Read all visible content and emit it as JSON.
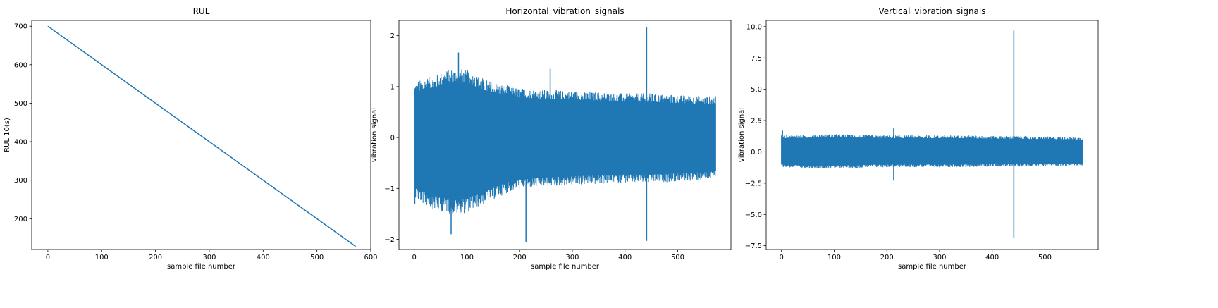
{
  "chart_data": [
    {
      "type": "line",
      "title": "RUL",
      "xlabel": "sample file number",
      "ylabel": "RUL 10(s)",
      "xlim": [
        -30,
        600
      ],
      "ylim": [
        120,
        715
      ],
      "xticks": [
        0,
        100,
        200,
        300,
        400,
        500,
        600
      ],
      "yticks": [
        200,
        300,
        400,
        500,
        600,
        700
      ],
      "grid": false,
      "color": "#1f77b4",
      "series": [
        {
          "x": [
            0,
            572
          ],
          "y": [
            700,
            128
          ]
        }
      ]
    },
    {
      "type": "line",
      "title": "Horizontal_vibration_signals",
      "xlabel": "sample file number",
      "ylabel": "vibration signal",
      "xlim": [
        -29,
        601
      ],
      "ylim": [
        -2.2,
        2.3
      ],
      "xticks": [
        0,
        100,
        200,
        300,
        400,
        500
      ],
      "yticks": [
        -2,
        -1,
        0,
        1,
        2
      ],
      "grid": false,
      "color": "#1f77b4",
      "envelope": {
        "x": [
          0,
          20,
          40,
          60,
          80,
          100,
          120,
          140,
          160,
          180,
          200,
          250,
          300,
          350,
          400,
          450,
          500,
          550,
          572
        ],
        "upper": [
          1.05,
          1.15,
          1.2,
          1.3,
          1.35,
          1.3,
          1.2,
          1.1,
          1.05,
          1.0,
          0.95,
          0.92,
          0.9,
          0.88,
          0.85,
          0.85,
          0.82,
          0.8,
          0.8
        ],
        "lower": [
          -1.2,
          -1.3,
          -1.4,
          -1.45,
          -1.5,
          -1.45,
          -1.35,
          -1.25,
          -1.15,
          -1.05,
          -1.0,
          -0.95,
          -0.92,
          -0.9,
          -0.88,
          -0.88,
          -0.85,
          -0.82,
          -0.8
        ]
      },
      "spikes": [
        {
          "x": 1,
          "y": -1.3
        },
        {
          "x": 70,
          "y": -1.9
        },
        {
          "x": 84,
          "y": 1.67
        },
        {
          "x": 212,
          "y": -2.05
        },
        {
          "x": 258,
          "y": 1.35
        },
        {
          "x": 441,
          "y": 2.17
        },
        {
          "x": 441,
          "y": -2.03
        }
      ]
    },
    {
      "type": "line",
      "title": "Vertical_vibration_signals",
      "xlabel": "sample file number",
      "ylabel": "vibration signal",
      "xlim": [
        -29,
        601
      ],
      "ylim": [
        -7.8,
        10.5
      ],
      "xticks": [
        0,
        100,
        200,
        300,
        400,
        500
      ],
      "yticks": [
        -7.5,
        -5.0,
        -2.5,
        0.0,
        2.5,
        5.0,
        7.5,
        10.0
      ],
      "yticklabels": [
        "−7.5",
        "−5.0",
        "−2.5",
        "0.0",
        "2.5",
        "5.0",
        "7.5",
        "10.0"
      ],
      "grid": false,
      "color": "#1f77b4",
      "envelope": {
        "x": [
          0,
          50,
          100,
          150,
          200,
          250,
          300,
          350,
          400,
          450,
          500,
          550,
          572
        ],
        "upper": [
          1.3,
          1.35,
          1.4,
          1.35,
          1.3,
          1.3,
          1.3,
          1.3,
          1.25,
          1.25,
          1.2,
          1.2,
          1.15
        ],
        "lower": [
          -1.2,
          -1.3,
          -1.3,
          -1.25,
          -1.2,
          -1.2,
          -1.2,
          -1.2,
          -1.15,
          -1.15,
          -1.1,
          -1.1,
          -1.1
        ]
      },
      "spikes": [
        {
          "x": 2,
          "y": 1.7
        },
        {
          "x": 213,
          "y": 1.9
        },
        {
          "x": 213,
          "y": -2.3
        },
        {
          "x": 441,
          "y": 9.7
        },
        {
          "x": 441,
          "y": -6.9
        }
      ]
    }
  ]
}
